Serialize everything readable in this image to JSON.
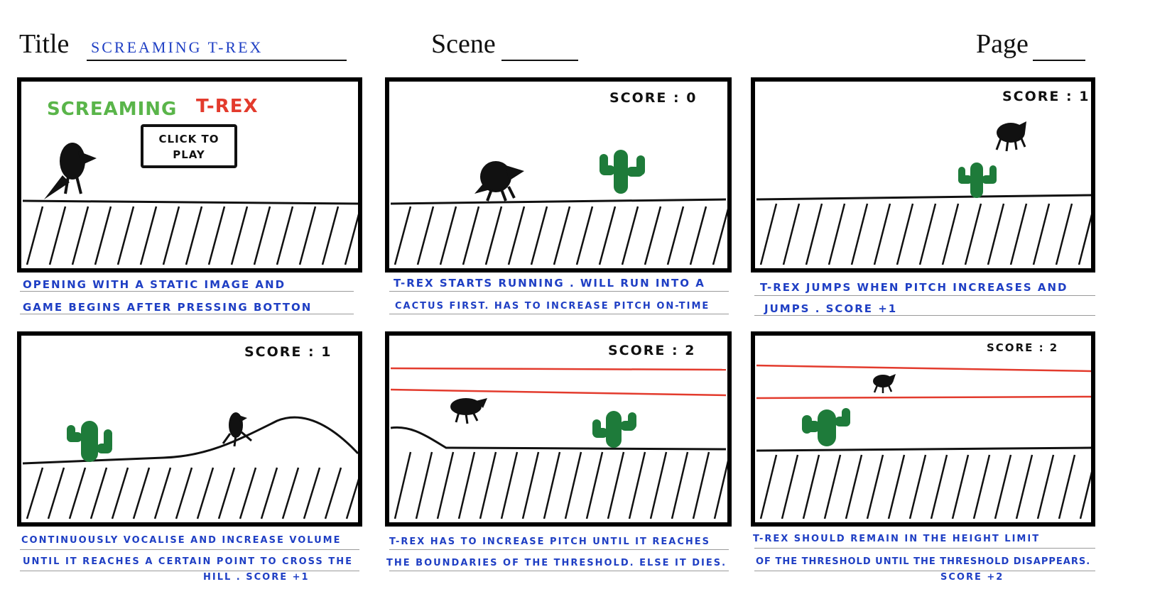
{
  "header": {
    "title_label": "Title",
    "title_value": "SCREAMING T-REX",
    "scene_label": "Scene",
    "page_label": "Page"
  },
  "panels": [
    {
      "splash_word_1": "SCREAMING",
      "splash_word_2": "T-REX",
      "play_button": "CLICK TO\nPLAY",
      "caption_1": "OPENING WITH A STATIC IMAGE AND",
      "caption_2": "GAME BEGINS AFTER PRESSING BOTTON"
    },
    {
      "score": "SCORE : 0",
      "caption_1": "T-REX STARTS RUNNING . WILL RUN INTO A",
      "caption_2": "CACTUS FIRST. HAS TO INCREASE PITCH ON-TIME"
    },
    {
      "score": "SCORE : 1",
      "caption_1": "T-REX JUMPS WHEN PITCH INCREASES AND",
      "caption_2": "JUMPS . SCORE +1"
    },
    {
      "score": "SCORE : 1",
      "caption_1": "CONTINUOUSLY VOCALISE AND INCREASE VOLUME",
      "caption_2": "UNTIL IT REACHES A CERTAIN POINT TO CROSS THE",
      "caption_3": "HILL . SCORE +1"
    },
    {
      "score": "SCORE : 2",
      "caption_1": "T-REX HAS TO INCREASE PITCH UNTIL IT REACHES",
      "caption_2": "THE BOUNDARIES OF THE THRESHOLD. ELSE IT DIES."
    },
    {
      "score": "SCORE : 2",
      "caption_1": "T-REX SHOULD REMAIN IN THE HEIGHT LIMIT",
      "caption_2": "OF THE THRESHOLD UNTIL THE THRESHOLD DISAPPEARS.",
      "caption_3": "SCORE +2"
    }
  ],
  "colors": {
    "caption_ink": "#1f3fc4",
    "cactus": "#1e7b3a",
    "threshold": "#e33b2d",
    "splash_green": "#5ab54a",
    "splash_red": "#e33b2d"
  }
}
